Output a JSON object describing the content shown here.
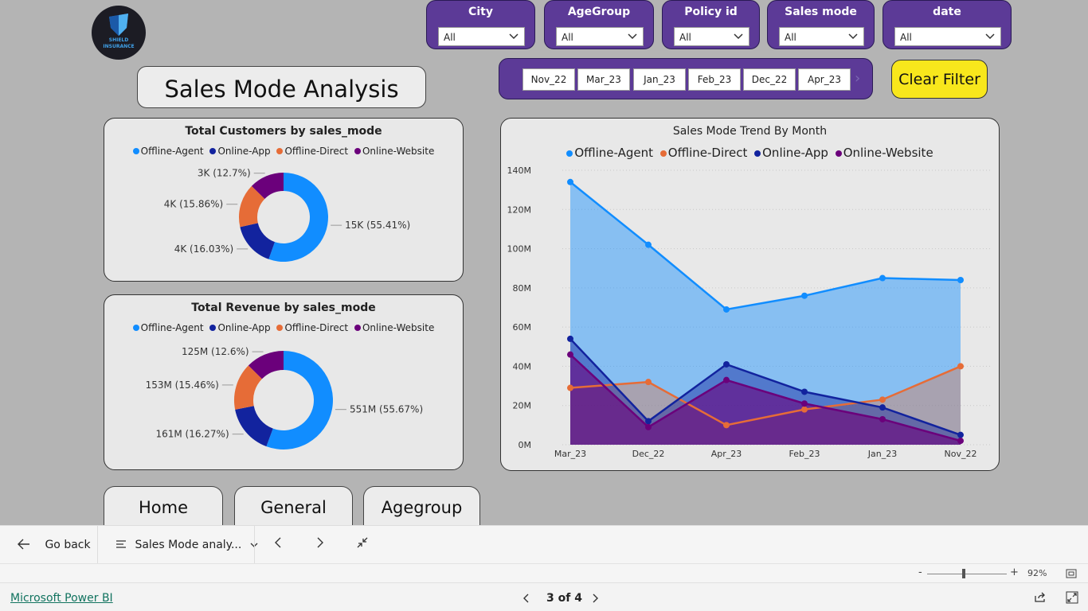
{
  "logo": {
    "line1": "SHIELD",
    "line2": "INSURANCE"
  },
  "page_title": "Sales Mode Analysis",
  "slicers": [
    {
      "label": "City",
      "value": "All"
    },
    {
      "label": "AgeGroup",
      "value": "All"
    },
    {
      "label": "Policy id",
      "value": "All"
    },
    {
      "label": "Sales mode",
      "value": "All"
    },
    {
      "label": "date",
      "value": "All"
    }
  ],
  "date_tiles": [
    "Nov_22",
    "Mar_23",
    "Jan_23",
    "Feb_23",
    "Dec_22",
    "Apr_23"
  ],
  "clear_filter": "Clear Filter",
  "colors": {
    "offline_agent": "#118dff",
    "online_app": "#12239e",
    "offline_direct": "#e66c37",
    "online_website": "#6b007b"
  },
  "nav_buttons": [
    "Home",
    "General",
    "Agegroup"
  ],
  "toolbar": {
    "go_back": "Go back",
    "page_menu": "Sales Mode analy..."
  },
  "zoom": {
    "minus": "-",
    "plus": "+",
    "percent": "92%"
  },
  "footer": {
    "brand": "Microsoft Power BI",
    "pager": "3 of 4"
  },
  "chart_data": [
    {
      "type": "donut",
      "title": "Total Customers by sales_mode",
      "legend": [
        "Offline-Agent",
        "Online-App",
        "Offline-Direct",
        "Online-Website"
      ],
      "slices": [
        {
          "name": "Offline-Agent",
          "percent": 55.41,
          "label": "15K (55.41%)"
        },
        {
          "name": "Online-App",
          "percent": 16.03,
          "label": "4K (16.03%)"
        },
        {
          "name": "Offline-Direct",
          "percent": 15.86,
          "label": "4K (15.86%)"
        },
        {
          "name": "Online-Website",
          "percent": 12.7,
          "label": "3K (12.7%)"
        }
      ]
    },
    {
      "type": "donut",
      "title": "Total Revenue by sales_mode",
      "legend": [
        "Offline-Agent",
        "Online-App",
        "Offline-Direct",
        "Online-Website"
      ],
      "slices": [
        {
          "name": "Offline-Agent",
          "percent": 55.67,
          "label": "551M (55.67%)"
        },
        {
          "name": "Online-App",
          "percent": 16.27,
          "label": "161M (16.27%)"
        },
        {
          "name": "Offline-Direct",
          "percent": 15.46,
          "label": "153M (15.46%)"
        },
        {
          "name": "Online-Website",
          "percent": 12.6,
          "label": "125M (12.6%)"
        }
      ]
    },
    {
      "type": "area",
      "title": "Sales Mode Trend By Month",
      "legend": [
        "Offline-Agent",
        "Offline-Direct",
        "Online-App",
        "Online-Website"
      ],
      "categories": [
        "Mar_23",
        "Dec_22",
        "Apr_23",
        "Feb_23",
        "Jan_23",
        "Nov_22"
      ],
      "ylim": [
        0,
        140
      ],
      "yticks": [
        "0M",
        "20M",
        "40M",
        "60M",
        "80M",
        "100M",
        "120M",
        "140M"
      ],
      "grid": true,
      "series": [
        {
          "name": "Offline-Agent",
          "values": [
            134,
            102,
            69,
            76,
            85,
            84
          ]
        },
        {
          "name": "Offline-Direct",
          "values": [
            29,
            32,
            10,
            18,
            23,
            40
          ]
        },
        {
          "name": "Online-App",
          "values": [
            54,
            12,
            41,
            27,
            19,
            5
          ]
        },
        {
          "name": "Online-Website",
          "values": [
            46,
            9,
            33,
            21,
            13,
            2
          ]
        }
      ]
    }
  ]
}
